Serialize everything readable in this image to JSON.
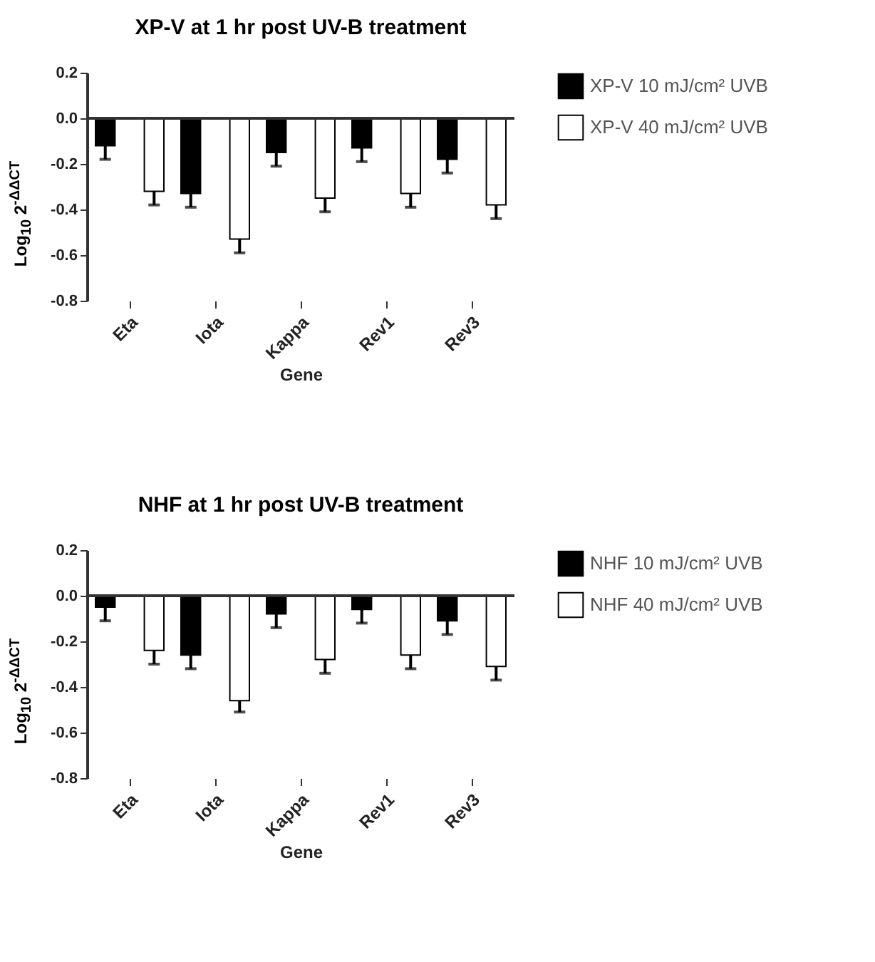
{
  "chart_data": [
    {
      "type": "bar",
      "title": "XP-V at 1 hr post UV-B treatment",
      "xlabel": "Gene",
      "ylabel": "Log$_{10}$ 2$^{-ΔΔCT}$",
      "categories": [
        "Eta",
        "Iota",
        "Kappa",
        "Rev1",
        "Rev3"
      ],
      "ylim": [
        -0.8,
        0.2
      ],
      "yticks": [
        {
          "value": -0.8,
          "label": "-0.8"
        },
        {
          "value": -0.6,
          "label": "-0.6"
        },
        {
          "value": -0.4,
          "label": "-0.4"
        },
        {
          "value": -0.2,
          "label": "-0.2"
        },
        {
          "value": 0,
          "label": "0.0"
        },
        {
          "value": 0.2,
          "label": "0.2"
        }
      ],
      "grid": false,
      "legend": "top right",
      "ref_lines": [
        {
          "axis": "y",
          "value": 0
        }
      ],
      "series": [
        {
          "name": "XP-V 10 mJ/cm² UVB",
          "color": "#000000",
          "values": [
            -0.12,
            -0.33,
            -0.15,
            -0.13,
            -0.18
          ],
          "errors": [
            [
              -0.18,
              -0.12
            ],
            [
              -0.39,
              -0.33
            ],
            [
              -0.21,
              -0.15
            ],
            [
              -0.19,
              -0.13
            ],
            [
              -0.24,
              -0.18
            ]
          ]
        },
        {
          "name": "XP-V 40 mJ/cm² UVB",
          "color": "#ffffff",
          "values": [
            -0.32,
            -0.53,
            -0.35,
            -0.33,
            -0.38
          ],
          "errors": [
            [
              -0.38,
              -0.32
            ],
            [
              -0.59,
              -0.53
            ],
            [
              -0.41,
              -0.35
            ],
            [
              -0.39,
              -0.33
            ],
            [
              -0.44,
              -0.38
            ]
          ]
        }
      ]
    },
    {
      "type": "bar",
      "title": "NHF at 1 hr post UV-B treatment",
      "xlabel": "Gene",
      "ylabel": "Log$_{10}$ 2$^{-ΔΔCT}$",
      "categories": [
        "Eta",
        "Iota",
        "Kappa",
        "Rev1",
        "Rev3"
      ],
      "ylim": [
        -0.8,
        0.2
      ],
      "yticks": [
        {
          "value": -0.8,
          "label": "-0.8"
        },
        {
          "value": -0.6,
          "label": "-0.6"
        },
        {
          "value": -0.4,
          "label": "-0.4"
        },
        {
          "value": -0.2,
          "label": "-0.2"
        },
        {
          "value": 0,
          "label": "0.0"
        },
        {
          "value": 0.2,
          "label": "0.2"
        }
      ],
      "grid": false,
      "legend": "top right",
      "ref_lines": [
        {
          "axis": "y",
          "value": 0
        }
      ],
      "series": [
        {
          "name": "NHF 10 mJ/cm² UVB",
          "color": "#000000",
          "values": [
            -0.05,
            -0.26,
            -0.08,
            -0.06,
            -0.11
          ],
          "errors": [
            [
              -0.11,
              -0.05
            ],
            [
              -0.32,
              -0.26
            ],
            [
              -0.14,
              -0.08
            ],
            [
              -0.12,
              -0.06
            ],
            [
              -0.17,
              -0.11
            ]
          ]
        },
        {
          "name": "NHF 40 mJ/cm² UVB",
          "color": "#ffffff",
          "values": [
            -0.24,
            -0.46,
            -0.28,
            -0.26,
            -0.31
          ],
          "errors": [
            [
              -0.3,
              -0.24
            ],
            [
              -0.51,
              -0.46
            ],
            [
              -0.34,
              -0.28
            ],
            [
              -0.32,
              -0.26
            ],
            [
              -0.37,
              -0.31
            ]
          ]
        }
      ]
    }
  ]
}
